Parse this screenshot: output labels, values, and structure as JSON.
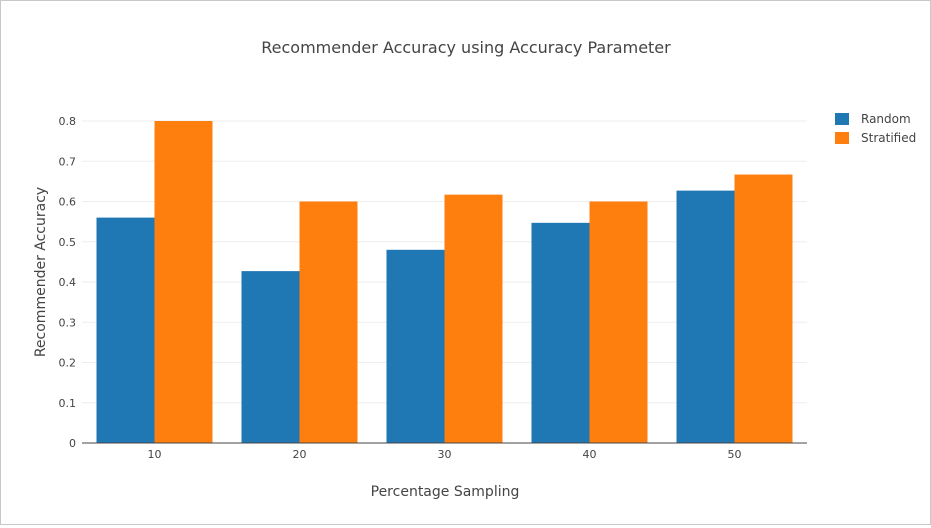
{
  "chart_data": {
    "type": "bar",
    "title": "Recommender Accuracy using Accuracy Parameter",
    "xlabel": "Percentage Sampling",
    "ylabel": "Recommender Accuracy",
    "categories": [
      "10",
      "20",
      "30",
      "40",
      "50"
    ],
    "series": [
      {
        "name": "Random",
        "color": "#1f77b4",
        "values": [
          0.56,
          0.427,
          0.48,
          0.547,
          0.627
        ]
      },
      {
        "name": "Stratified",
        "color": "#ff7f0e",
        "values": [
          0.8,
          0.6,
          0.617,
          0.6,
          0.667
        ]
      }
    ],
    "ylim": [
      0,
      0.8
    ],
    "yticks": [
      "0",
      "0.1",
      "0.2",
      "0.3",
      "0.4",
      "0.5",
      "0.6",
      "0.7",
      "0.8"
    ],
    "grid": true,
    "legend": "top-right"
  }
}
